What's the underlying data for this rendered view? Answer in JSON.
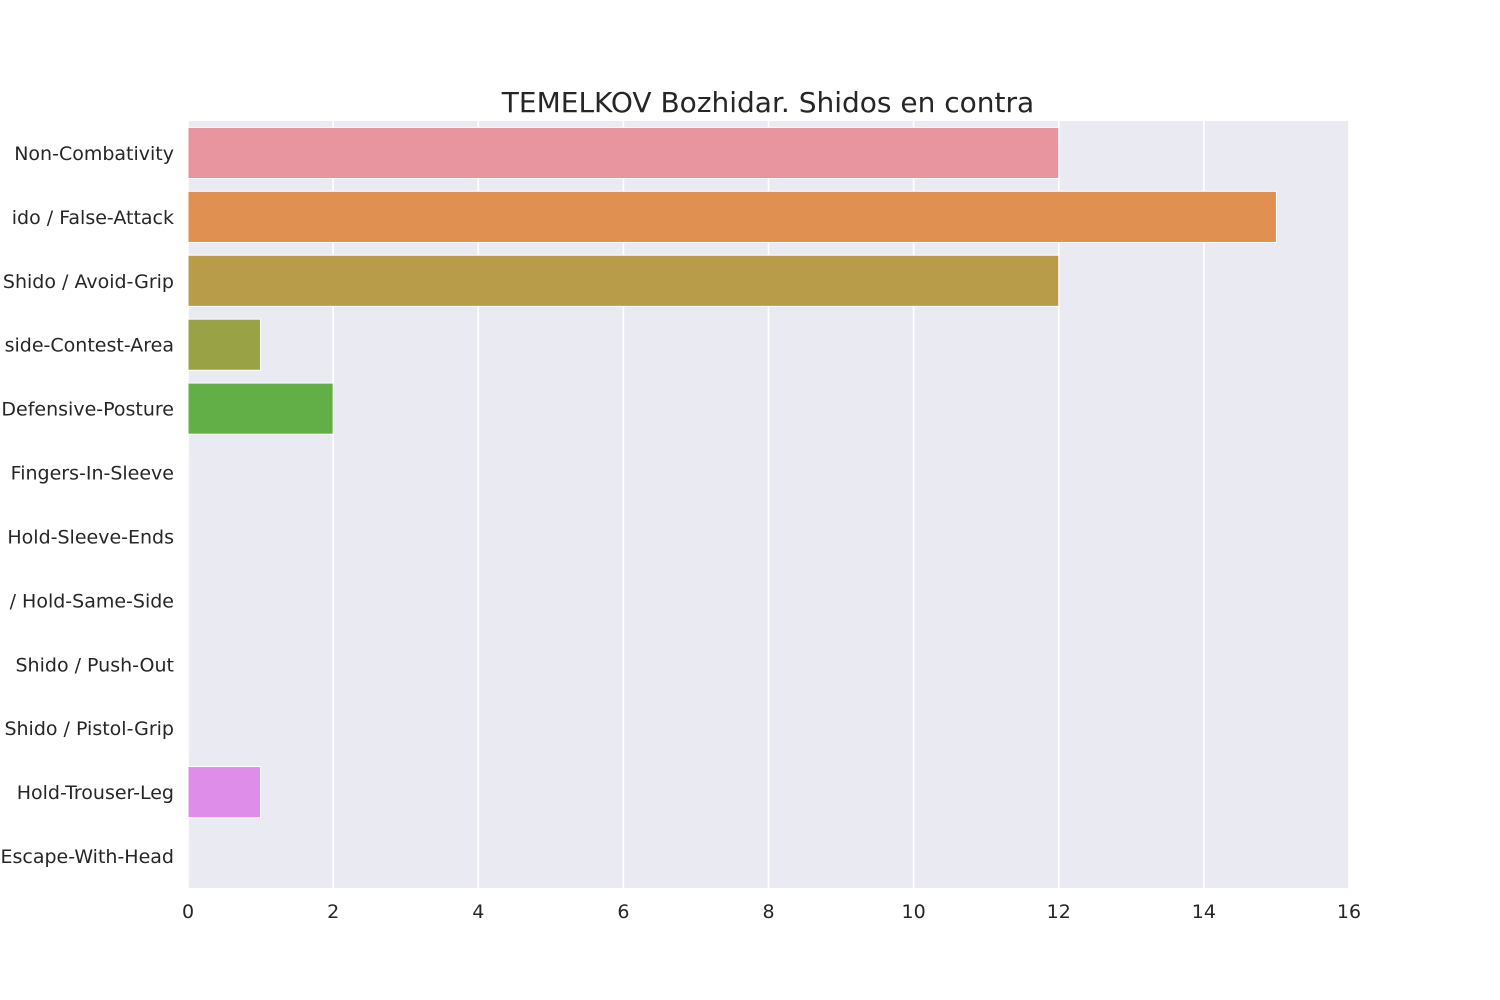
{
  "chart_data": {
    "type": "bar",
    "orientation": "horizontal",
    "title": "TEMELKOV Bozhidar. Shidos en contra",
    "xlabel": "",
    "ylabel": "",
    "xlim": [
      0,
      16
    ],
    "xticks": [
      0,
      2,
      4,
      6,
      8,
      10,
      12,
      14,
      16
    ],
    "grid": true,
    "background": "#EAEAF2",
    "categories": [
      "Non-Combativity",
      "ido / False-Attack",
      "Shido / Avoid-Grip",
      "side-Contest-Area",
      "Defensive-Posture",
      "Fingers-In-Sleeve",
      "Hold-Sleeve-Ends",
      "/ Hold-Same-Side",
      "Shido / Push-Out",
      "Shido / Pistol-Grip",
      "Hold-Trouser-Leg",
      "Escape-With-Head"
    ],
    "values": [
      12,
      15,
      12,
      1,
      2,
      0,
      0,
      0,
      0,
      0,
      1,
      0
    ],
    "colors": [
      "#E8959F",
      "#E09152",
      "#B89C49",
      "#99A345",
      "#62AF48",
      "#4BB07A",
      "#4EAB9D",
      "#50A8B4",
      "#55A4CB",
      "#9C97E8",
      "#DE8DE8",
      "#E68CC0"
    ]
  }
}
